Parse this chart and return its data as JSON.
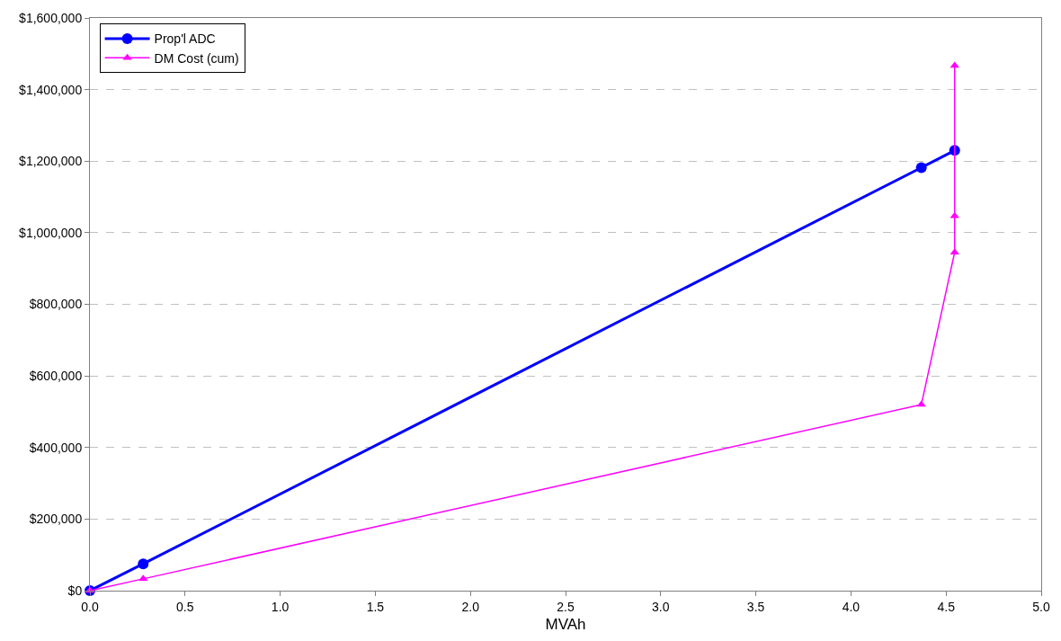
{
  "chart_data": {
    "type": "line",
    "xlabel": "MVAh",
    "series": [
      {
        "name": "Prop'l ADC",
        "color": "#0000ff",
        "marker": "circle",
        "x": [
          0,
          0.28,
          4.37,
          4.545
        ],
        "values": [
          0,
          75000,
          1182000,
          1230000
        ]
      },
      {
        "name": "DM Cost (cum)",
        "color": "#ff00ff",
        "marker": "triangle",
        "x": [
          0,
          0.28,
          4.37,
          4.545,
          4.545,
          4.545
        ],
        "values": [
          0,
          33000,
          520000,
          945000,
          1047000,
          1467000
        ]
      }
    ],
    "xlim": [
      0,
      5
    ],
    "xticks": [
      {
        "value": 0,
        "label": "0.0"
      },
      {
        "value": 0.5,
        "label": "0.5"
      },
      {
        "value": 1,
        "label": "1.0"
      },
      {
        "value": 1.5,
        "label": "1.5"
      },
      {
        "value": 2,
        "label": "2.0"
      },
      {
        "value": 2.5,
        "label": "2.5"
      },
      {
        "value": 3,
        "label": "3.0"
      },
      {
        "value": 3.5,
        "label": "3.5"
      },
      {
        "value": 4,
        "label": "4.0"
      },
      {
        "value": 4.5,
        "label": "4.5"
      },
      {
        "value": 5,
        "label": "5.0"
      }
    ],
    "ylim": [
      0,
      1600000
    ],
    "yticks": [
      {
        "value": 0,
        "label": "$0"
      },
      {
        "value": 200000,
        "label": "$200,000"
      },
      {
        "value": 400000,
        "label": "$400,000"
      },
      {
        "value": 600000,
        "label": "$600,000"
      },
      {
        "value": 800000,
        "label": "$800,000"
      },
      {
        "value": 1000000,
        "label": "$1,000,000"
      },
      {
        "value": 1200000,
        "label": "$1,200,000"
      },
      {
        "value": 1400000,
        "label": "$1,400,000"
      },
      {
        "value": 1600000,
        "label": "$1,600,000"
      }
    ],
    "grid": "y",
    "legend": "top left"
  }
}
